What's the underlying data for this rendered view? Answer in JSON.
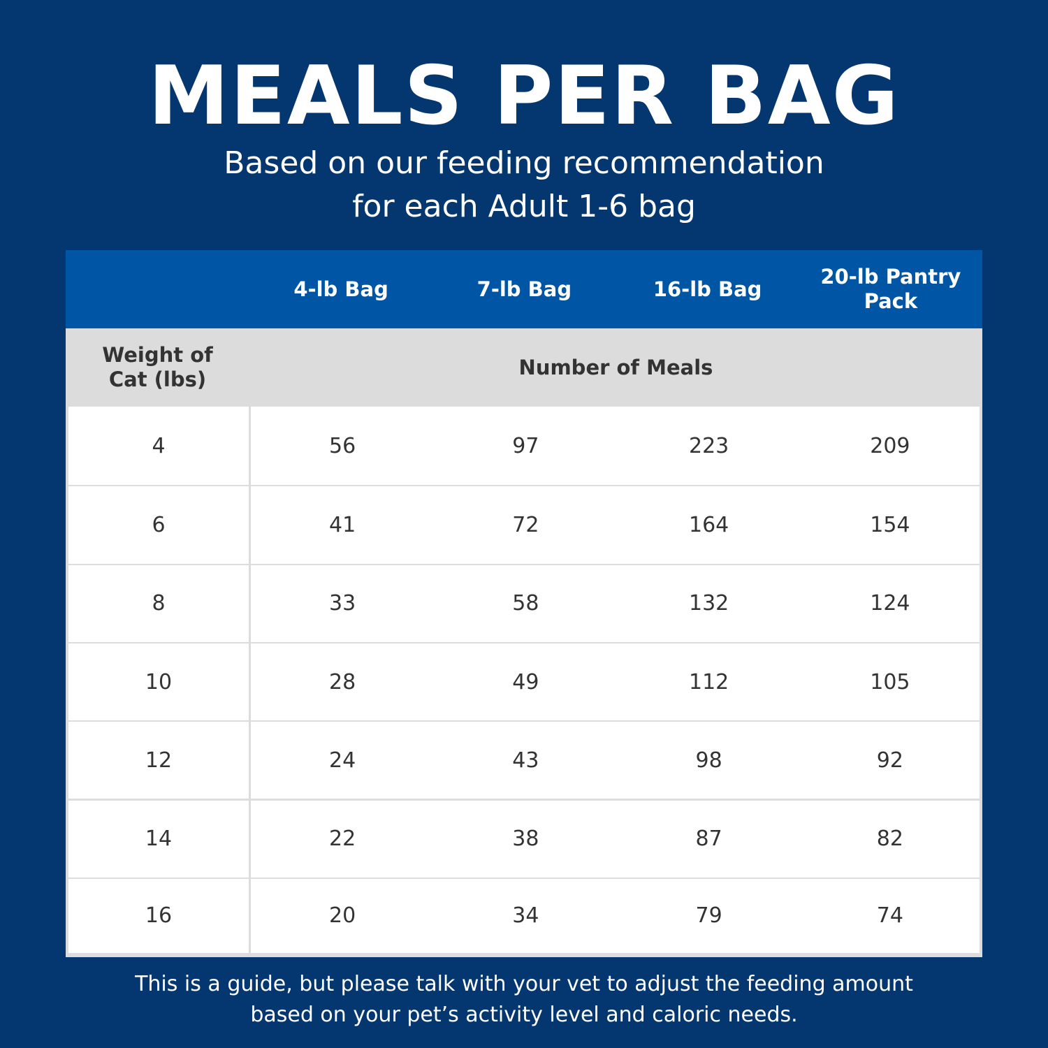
{
  "header": {
    "title": "MEALS PER BAG",
    "subtitle": [
      "Based on our feeding recommendation",
      "for each Adult 1-6 bag"
    ]
  },
  "table": {
    "columns": [
      "4-lb Bag",
      "7-lb Bag",
      "16-lb Bag",
      "20-lb Pantry Pack"
    ],
    "row_header": "Weight of Cat (lbs)",
    "group_header": "Number of Meals",
    "rows": [
      [
        4,
        56,
        97,
        223,
        209
      ],
      [
        6,
        41,
        72,
        164,
        154
      ],
      [
        8,
        33,
        58,
        132,
        124
      ],
      [
        10,
        28,
        49,
        112,
        105
      ],
      [
        12,
        24,
        43,
        98,
        92
      ],
      [
        14,
        22,
        38,
        87,
        82
      ],
      [
        16,
        20,
        34,
        79,
        74
      ]
    ]
  },
  "footer": [
    "This is a guide, but please talk with your vet to adjust the feeding amount",
    "based on your pet’s activity level and caloric needs."
  ]
}
